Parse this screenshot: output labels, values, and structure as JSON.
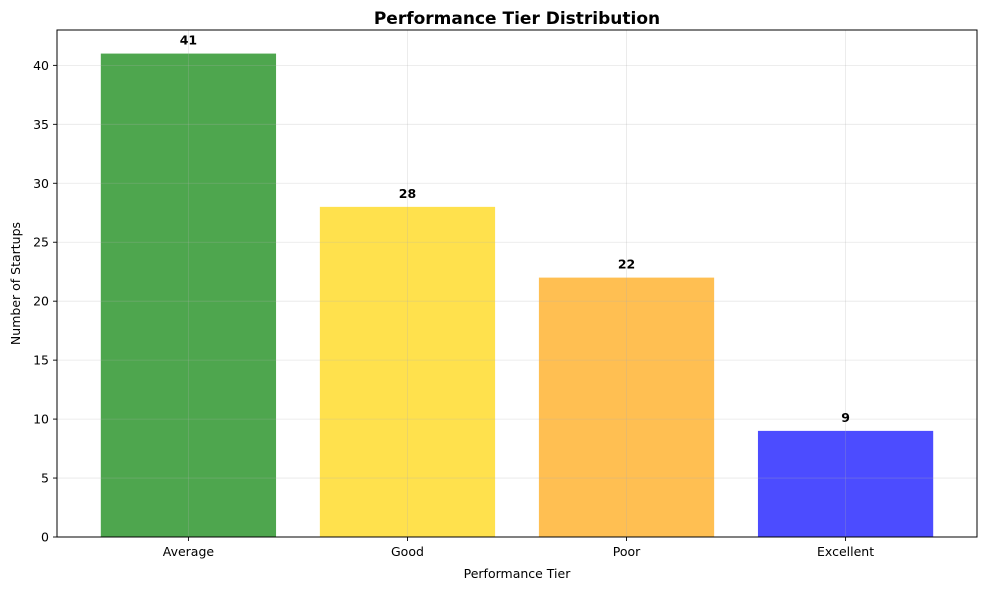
{
  "chart_data": {
    "type": "bar",
    "title": "Performance Tier Distribution",
    "xlabel": "Performance Tier",
    "ylabel": "Number of Startups",
    "categories": [
      "Average",
      "Good",
      "Poor",
      "Excellent"
    ],
    "values": [
      41,
      28,
      22,
      9
    ],
    "value_labels": [
      "41",
      "28",
      "22",
      "9"
    ],
    "bar_colors": [
      "#4ea64e",
      "#ffe14d",
      "#ffbf52",
      "#4c4cff"
    ],
    "ylim": [
      0,
      43
    ],
    "yticks": [
      0,
      5,
      10,
      15,
      20,
      25,
      30,
      35,
      40
    ],
    "ytick_labels": [
      "0",
      "5",
      "10",
      "15",
      "20",
      "25",
      "30",
      "35",
      "40"
    ],
    "grid": true,
    "legend": "none"
  }
}
